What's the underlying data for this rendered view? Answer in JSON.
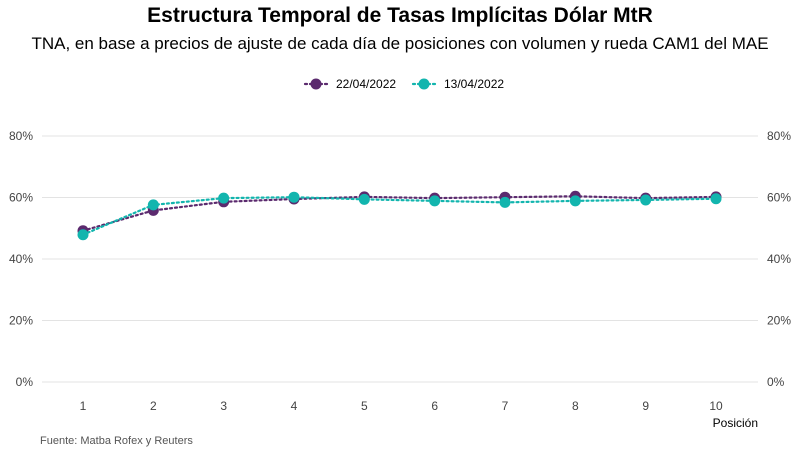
{
  "chart_data": {
    "type": "line",
    "title": "Estructura Temporal de Tasas Implícitas Dólar MtR",
    "subtitle": "TNA, en base a precios de ajuste de cada día de posiciones con volumen y rueda CAM1 del MAE",
    "xlabel": "Posición",
    "ylabel": "",
    "caption": "Fuente: Matba Rofex y Reuters",
    "x": [
      1,
      2,
      3,
      4,
      5,
      6,
      7,
      8,
      9,
      10
    ],
    "ylim": [
      0,
      80
    ],
    "yticks": [
      0,
      20,
      40,
      60,
      80
    ],
    "ytick_labels": [
      "0%",
      "20%",
      "40%",
      "60%",
      "80%"
    ],
    "grid": true,
    "legend_position": "top",
    "series": [
      {
        "name": "22/04/2022",
        "color": "#5b2a6e",
        "values": [
          49.2,
          55.8,
          58.6,
          59.5,
          60.2,
          59.8,
          60.1,
          60.4,
          59.8,
          60.2
        ]
      },
      {
        "name": "13/04/2022",
        "color": "#12b5ae",
        "values": [
          47.9,
          57.6,
          59.8,
          60.1,
          59.4,
          58.9,
          58.4,
          58.9,
          59.2,
          59.6
        ]
      }
    ]
  }
}
